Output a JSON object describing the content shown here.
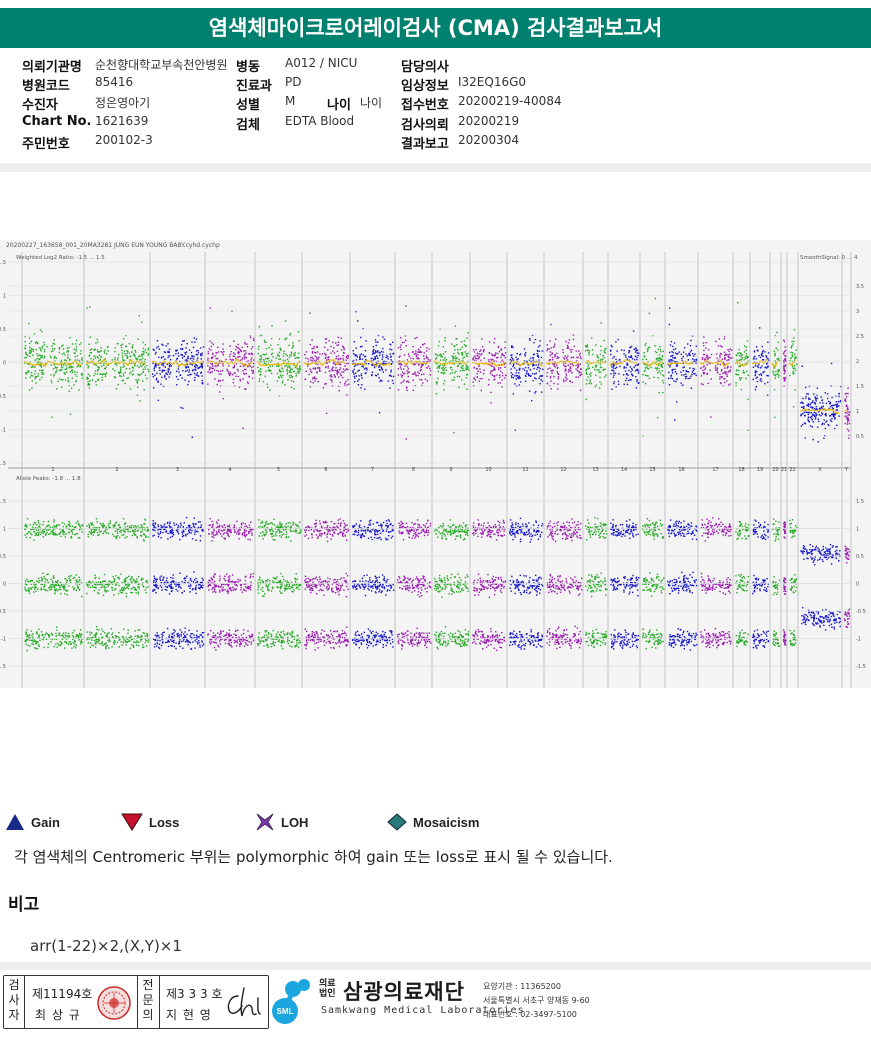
{
  "title": "염색체마이크로어레이검사 (CMA) 검사결과보고서",
  "patient": {
    "c1": [
      {
        "label": "의뢰기관명",
        "value": "순천향대학교부속천안병원"
      },
      {
        "label": "병원코드",
        "value": "85416"
      },
      {
        "label": "수진자",
        "value": "정은영아기"
      },
      {
        "label": "Chart No.",
        "value": "1621639"
      },
      {
        "label": "주민번호",
        "value": "200102-3"
      }
    ],
    "c2": [
      {
        "label": "병동",
        "value": "A012 / NICU"
      },
      {
        "label": "진료과",
        "value": "PD"
      },
      {
        "label": "성별",
        "value": "M"
      },
      {
        "label": "검체",
        "value": "EDTA Blood"
      }
    ],
    "age": {
      "label": "나이",
      "value": "나이"
    },
    "c3": [
      {
        "label": "담당의사",
        "value": ""
      },
      {
        "label": "임상정보",
        "value": "I32EQ16G0"
      },
      {
        "label": "접수번호",
        "value": "20200219-40084"
      },
      {
        "label": "검사의뢰",
        "value": "20200219"
      },
      {
        "label": "결과보고",
        "value": "20200304"
      }
    ]
  },
  "plot": {
    "file_label": "20200227_163658_001_20MA3281 JUNG EUN YOUNG BABY.cyhd.cychp",
    "top_label": "Weighted Log2 Ratio: -1.5 ... 1.5",
    "top_right_label": "SmoothSignal: 0 ... 4",
    "bottom_label": "Allele Peaks: -1.8 ... 1.8",
    "chromosomes": [
      "1",
      "2",
      "3",
      "4",
      "5",
      "6",
      "7",
      "8",
      "9",
      "10",
      "11",
      "12",
      "13",
      "14",
      "15",
      "16",
      "17",
      "18",
      "19",
      "20",
      "21",
      "22",
      "X",
      "Y"
    ],
    "top_left_ticks": [
      "1.5",
      "1",
      "0.5",
      "0",
      "-0.5",
      "-1",
      "-1.5"
    ],
    "top_right_ticks": [
      "3.5",
      "3",
      "2.5",
      "2",
      "1.5",
      "1",
      "0.5"
    ],
    "bottom_left_ticks": [
      "1.5",
      "1",
      "0.5",
      "0",
      "-0.5",
      "-1",
      "-1.5"
    ],
    "bottom_right_ticks": [
      "1.5",
      "1",
      "0.5",
      "0",
      "-0.5",
      "-1",
      "-1.5"
    ],
    "colors": {
      "green": "#22aa22",
      "blue": "#1414cc",
      "purple": "#9a1ab0",
      "smooth": "#e8b800"
    }
  },
  "legend": [
    {
      "label": "Gain",
      "icon": "gain-triangle-icon",
      "color": "#1a2a8a"
    },
    {
      "label": "Loss",
      "icon": "loss-triangle-icon",
      "color": "#c8102e"
    },
    {
      "label": "LOH",
      "icon": "loh-cross-icon",
      "color": "#7a3aa8"
    },
    {
      "label": "Mosaicism",
      "icon": "mosaicism-diamond-icon",
      "color": "#2a7a7a"
    }
  ],
  "note": "각 염색체의 Centromeric 부위는 polymorphic 하여 gain 또는 loss로 표시 될 수 있습니다.",
  "remark": {
    "title": "비고",
    "text": "arr(1-22)×2,(X,Y)×1"
  },
  "signature": {
    "inspector_label": "검사자",
    "inspector_license": "제11194호",
    "inspector_name": "최 상 규",
    "specialist_label": "전문의",
    "specialist_license": "제3 3 3 호",
    "specialist_name": "지 현 영"
  },
  "lab": {
    "prefix": "의료법인",
    "name": "삼광의료재단",
    "english": "Samkwang Medical Laboratories",
    "logo_text": "SML",
    "care_code": "요양기관 : 11365200",
    "address": "서울특별시 서초구 양재동 9-60",
    "phone": "대표번호 : 02-3497-5100"
  }
}
